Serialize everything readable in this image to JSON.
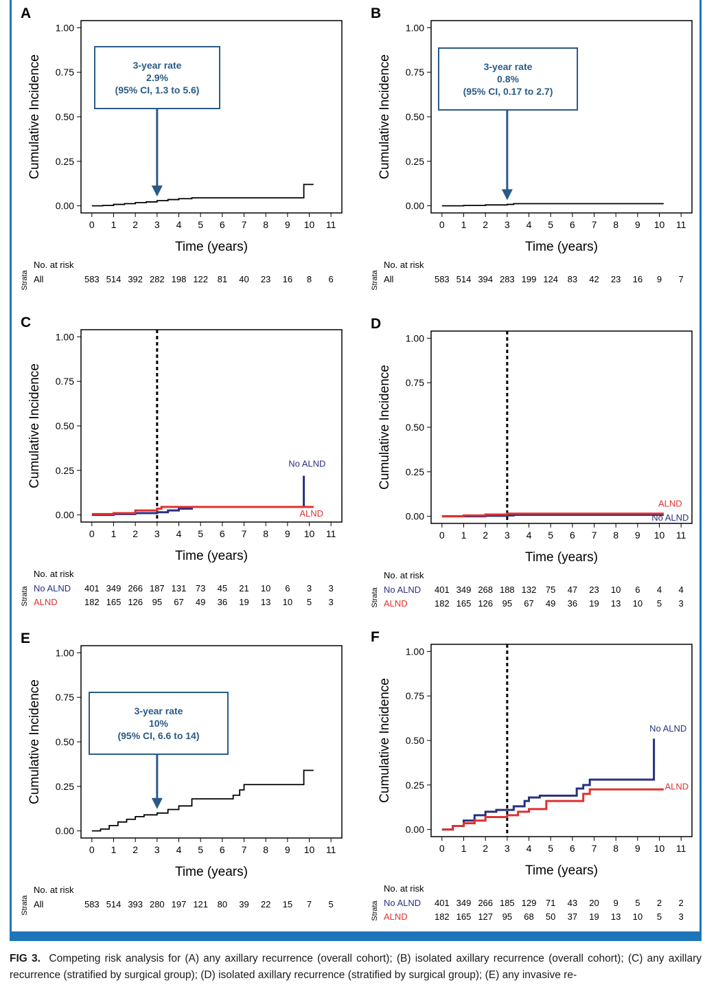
{
  "common": {
    "ylabel": "Cumulative Incidence",
    "xlabel": "Time (years)",
    "yticks": [
      "0.00",
      "0.25",
      "0.50",
      "0.75",
      "1.00"
    ],
    "xticks": [
      "0",
      "1",
      "2",
      "3",
      "4",
      "5",
      "6",
      "7",
      "8",
      "9",
      "10",
      "11"
    ],
    "risk_header": "No. at risk",
    "strata_label": "Strata",
    "colors": {
      "all": "#000000",
      "no_alnd": "#27307f",
      "alnd": "#e03030",
      "annotation": "#2a5a86",
      "bar": "#1d76b8"
    }
  },
  "chart_data": [
    {
      "panel": "A",
      "type": "line",
      "xlim": [
        -0.5,
        11.5
      ],
      "ylim": [
        -0.04,
        1.04
      ],
      "annotation": {
        "lines": [
          "3-year rate",
          "2.9%",
          "(95% CI, 1.3 to 5.6)"
        ],
        "arrow_x": 3,
        "arrow_y": 0.029
      },
      "series": [
        {
          "key": "all",
          "points": [
            [
              0,
              0
            ],
            [
              0.5,
              0.002
            ],
            [
              1,
              0.008
            ],
            [
              1.5,
              0.012
            ],
            [
              2,
              0.018
            ],
            [
              2.5,
              0.022
            ],
            [
              3,
              0.029
            ],
            [
              3.5,
              0.035
            ],
            [
              4,
              0.04
            ],
            [
              4.6,
              0.045
            ],
            [
              5,
              0.045
            ],
            [
              9.75,
              0.045
            ],
            [
              9.75,
              0.12
            ],
            [
              10.2,
              0.12
            ]
          ]
        }
      ],
      "risk_table": [
        {
          "label": "All",
          "key": "all",
          "values": [
            583,
            514,
            392,
            282,
            198,
            122,
            81,
            40,
            23,
            16,
            8,
            6
          ]
        }
      ]
    },
    {
      "panel": "B",
      "type": "line",
      "xlim": [
        -0.5,
        11.5
      ],
      "ylim": [
        -0.04,
        1.04
      ],
      "annotation": {
        "lines": [
          "3-year rate",
          "0.8%",
          "(95% CI, 0.17 to 2.7)"
        ],
        "arrow_x": 3,
        "arrow_y": 0.008
      },
      "series": [
        {
          "key": "all",
          "points": [
            [
              0,
              0
            ],
            [
              1,
              0.002
            ],
            [
              2,
              0.005
            ],
            [
              3,
              0.008
            ],
            [
              3.3,
              0.012
            ],
            [
              10.2,
              0.012
            ]
          ]
        }
      ],
      "risk_table": [
        {
          "label": "All",
          "key": "all",
          "values": [
            583,
            514,
            394,
            283,
            199,
            124,
            83,
            42,
            23,
            16,
            9,
            7
          ]
        }
      ]
    },
    {
      "panel": "C",
      "type": "line",
      "xlim": [
        -0.5,
        11.5
      ],
      "ylim": [
        -0.04,
        1.04
      ],
      "vline": 3,
      "series": [
        {
          "name": "No ALND",
          "key": "no_alnd",
          "points": [
            [
              0,
              0
            ],
            [
              1,
              0.005
            ],
            [
              2,
              0.01
            ],
            [
              3,
              0.015
            ],
            [
              3.5,
              0.025
            ],
            [
              4,
              0.035
            ],
            [
              4.6,
              0.045
            ],
            [
              9.75,
              0.045
            ],
            [
              9.75,
              0.22
            ]
          ]
        },
        {
          "name": "ALND",
          "key": "alnd",
          "points": [
            [
              0,
              0.005
            ],
            [
              1,
              0.01
            ],
            [
              2,
              0.025
            ],
            [
              3,
              0.035
            ],
            [
              3.2,
              0.045
            ],
            [
              10.2,
              0.045
            ]
          ]
        }
      ],
      "labels": [
        {
          "key": "no_alnd",
          "text": "No ALND",
          "x": 9.9,
          "y": 0.27
        },
        {
          "key": "alnd",
          "text": "ALND",
          "x": 10.1,
          "y": -0.01
        }
      ],
      "risk_table": [
        {
          "label": "No ALND",
          "key": "no_alnd",
          "values": [
            401,
            349,
            266,
            187,
            131,
            73,
            45,
            21,
            10,
            6,
            3,
            3
          ]
        },
        {
          "label": "ALND",
          "key": "alnd",
          "values": [
            182,
            165,
            126,
            95,
            67,
            49,
            36,
            19,
            13,
            10,
            5,
            3
          ]
        }
      ]
    },
    {
      "panel": "D",
      "type": "line",
      "xlim": [
        -0.5,
        11.5
      ],
      "ylim": [
        -0.04,
        1.04
      ],
      "vline": 3,
      "series": [
        {
          "name": "No ALND",
          "key": "no_alnd",
          "points": [
            [
              0,
              0
            ],
            [
              2,
              0.003
            ],
            [
              3,
              0.005
            ],
            [
              3.3,
              0.008
            ],
            [
              10.2,
              0.008
            ]
          ]
        },
        {
          "name": "ALND",
          "key": "alnd",
          "points": [
            [
              0,
              0
            ],
            [
              1,
              0.005
            ],
            [
              2,
              0.01
            ],
            [
              3,
              0.015
            ],
            [
              10.2,
              0.015
            ]
          ]
        }
      ],
      "labels": [
        {
          "key": "alnd",
          "text": "ALND",
          "x": 10.5,
          "y": 0.055
        },
        {
          "key": "no_alnd",
          "text": "No ALND",
          "x": 10.5,
          "y": -0.025
        }
      ],
      "risk_table": [
        {
          "label": "No ALND",
          "key": "no_alnd",
          "values": [
            401,
            349,
            268,
            188,
            132,
            75,
            47,
            23,
            10,
            6,
            4,
            4
          ]
        },
        {
          "label": "ALND",
          "key": "alnd",
          "values": [
            182,
            165,
            126,
            95,
            67,
            49,
            36,
            19,
            13,
            10,
            5,
            3
          ]
        }
      ]
    },
    {
      "panel": "E",
      "type": "line",
      "xlim": [
        -0.5,
        11.5
      ],
      "ylim": [
        -0.04,
        1.04
      ],
      "annotation": {
        "lines": [
          "3-year rate",
          "10%",
          "(95% CI, 6.6 to 14)"
        ],
        "arrow_x": 3,
        "arrow_y": 0.1
      },
      "series": [
        {
          "key": "all",
          "points": [
            [
              0,
              0
            ],
            [
              0.4,
              0.01
            ],
            [
              0.8,
              0.03
            ],
            [
              1.2,
              0.05
            ],
            [
              1.6,
              0.065
            ],
            [
              2,
              0.08
            ],
            [
              2.4,
              0.09
            ],
            [
              3,
              0.1
            ],
            [
              3.5,
              0.12
            ],
            [
              4,
              0.14
            ],
            [
              4.6,
              0.18
            ],
            [
              5,
              0.18
            ],
            [
              6.3,
              0.18
            ],
            [
              6.5,
              0.2
            ],
            [
              6.8,
              0.23
            ],
            [
              7,
              0.26
            ],
            [
              9.75,
              0.26
            ],
            [
              9.75,
              0.34
            ],
            [
              10.2,
              0.34
            ]
          ]
        }
      ],
      "risk_table": [
        {
          "label": "All",
          "key": "all",
          "values": [
            583,
            514,
            393,
            280,
            197,
            121,
            80,
            39,
            22,
            15,
            7,
            5
          ]
        }
      ]
    },
    {
      "panel": "F",
      "type": "line",
      "xlim": [
        -0.5,
        11.5
      ],
      "ylim": [
        -0.04,
        1.04
      ],
      "vline": 3,
      "series": [
        {
          "name": "No ALND",
          "key": "no_alnd",
          "points": [
            [
              0,
              0
            ],
            [
              0.5,
              0.02
            ],
            [
              1,
              0.05
            ],
            [
              1.5,
              0.08
            ],
            [
              2,
              0.1
            ],
            [
              2.5,
              0.11
            ],
            [
              3,
              0.11
            ],
            [
              3.3,
              0.13
            ],
            [
              3.8,
              0.16
            ],
            [
              4,
              0.18
            ],
            [
              4.5,
              0.19
            ],
            [
              6,
              0.19
            ],
            [
              6.2,
              0.23
            ],
            [
              6.5,
              0.25
            ],
            [
              6.8,
              0.28
            ],
            [
              9.75,
              0.28
            ],
            [
              9.75,
              0.51
            ]
          ]
        },
        {
          "name": "ALND",
          "key": "alnd",
          "points": [
            [
              0,
              0
            ],
            [
              0.5,
              0.02
            ],
            [
              1,
              0.035
            ],
            [
              1.5,
              0.05
            ],
            [
              2,
              0.07
            ],
            [
              2.5,
              0.07
            ],
            [
              3,
              0.08
            ],
            [
              3.5,
              0.1
            ],
            [
              4,
              0.115
            ],
            [
              4.5,
              0.115
            ],
            [
              4.8,
              0.16
            ],
            [
              6.3,
              0.16
            ],
            [
              6.5,
              0.2
            ],
            [
              6.8,
              0.225
            ],
            [
              10.2,
              0.225
            ]
          ]
        }
      ],
      "labels": [
        {
          "key": "no_alnd",
          "text": "No ALND",
          "x": 10.4,
          "y": 0.55
        },
        {
          "key": "alnd",
          "text": "ALND",
          "x": 10.8,
          "y": 0.225
        }
      ],
      "risk_table": [
        {
          "label": "No ALND",
          "key": "no_alnd",
          "values": [
            401,
            349,
            266,
            185,
            129,
            71,
            43,
            20,
            9,
            5,
            2,
            2
          ]
        },
        {
          "label": "ALND",
          "key": "alnd",
          "values": [
            182,
            165,
            127,
            95,
            68,
            50,
            37,
            19,
            13,
            10,
            5,
            3
          ]
        }
      ]
    }
  ],
  "caption": {
    "lead": "FIG 3.",
    "text": "Competing risk analysis for (A) any axillary recurrence (overall cohort); (B) isolated axillary recurrence (overall cohort); (C) any axillary recurrence (stratified by surgical group); (D) isolated axillary recurrence (stratified by surgical group); (E) any invasive re-"
  }
}
